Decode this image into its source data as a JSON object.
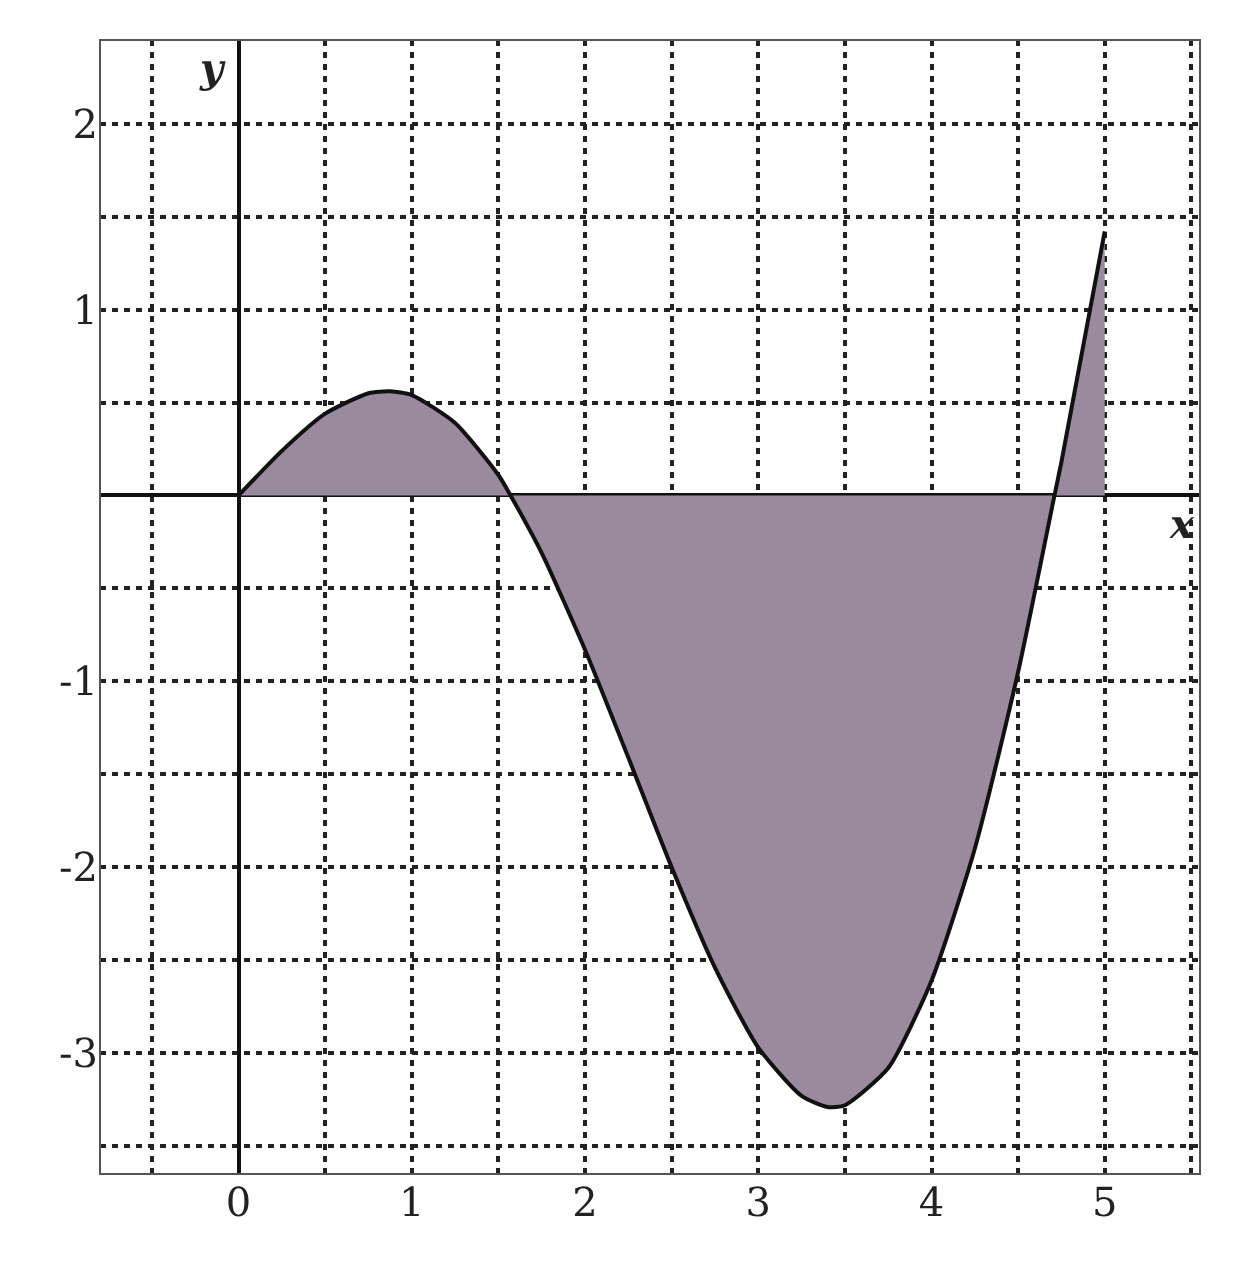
{
  "chart_data": {
    "type": "area",
    "xlabel": "x",
    "ylabel": "y",
    "x": [
      0,
      0.25,
      0.5,
      0.75,
      0.875,
      1,
      1.25,
      1.5,
      1.57,
      1.75,
      2,
      2.25,
      2.5,
      2.75,
      3,
      3.25,
      3.4,
      3.5,
      3.75,
      4,
      4.25,
      4.5,
      4.71,
      4.75,
      5
    ],
    "series": [
      {
        "color": "#9a8a9e",
        "values": [
          0,
          0.24,
          0.44,
          0.55,
          0.56,
          0.54,
          0.39,
          0.11,
          0,
          -0.31,
          -0.83,
          -1.41,
          -2.0,
          -2.54,
          -2.97,
          -3.23,
          -3.29,
          -3.28,
          -3.08,
          -2.61,
          -1.9,
          -0.95,
          0,
          0.18,
          1.42
        ]
      }
    ],
    "xlim": [
      -0.8,
      5.55
    ],
    "ylim": [
      -3.65,
      2.45
    ],
    "xticks": [
      {
        "value": -0.5,
        "label": null
      },
      0,
      {
        "value": 0.5,
        "label": null
      },
      1,
      {
        "value": 1.5,
        "label": null
      },
      2,
      {
        "value": 2.5,
        "label": null
      },
      3,
      {
        "value": 3.5,
        "label": null
      },
      4,
      {
        "value": 4.5,
        "label": null
      },
      5,
      {
        "value": 5.5,
        "label": null
      }
    ],
    "yticks": [
      {
        "value": -3.5,
        "label": null
      },
      -3,
      {
        "value": -2.5,
        "label": null
      },
      -2,
      {
        "value": -1.5,
        "label": null
      },
      -1,
      {
        "value": -0.5,
        "label": null
      },
      {
        "value": 0,
        "label": null
      },
      {
        "value": 0.5,
        "label": null
      },
      1,
      {
        "value": 1.5,
        "label": null
      },
      2
    ],
    "grid": true,
    "legend": false,
    "line_style": "solid",
    "marker": "none"
  }
}
